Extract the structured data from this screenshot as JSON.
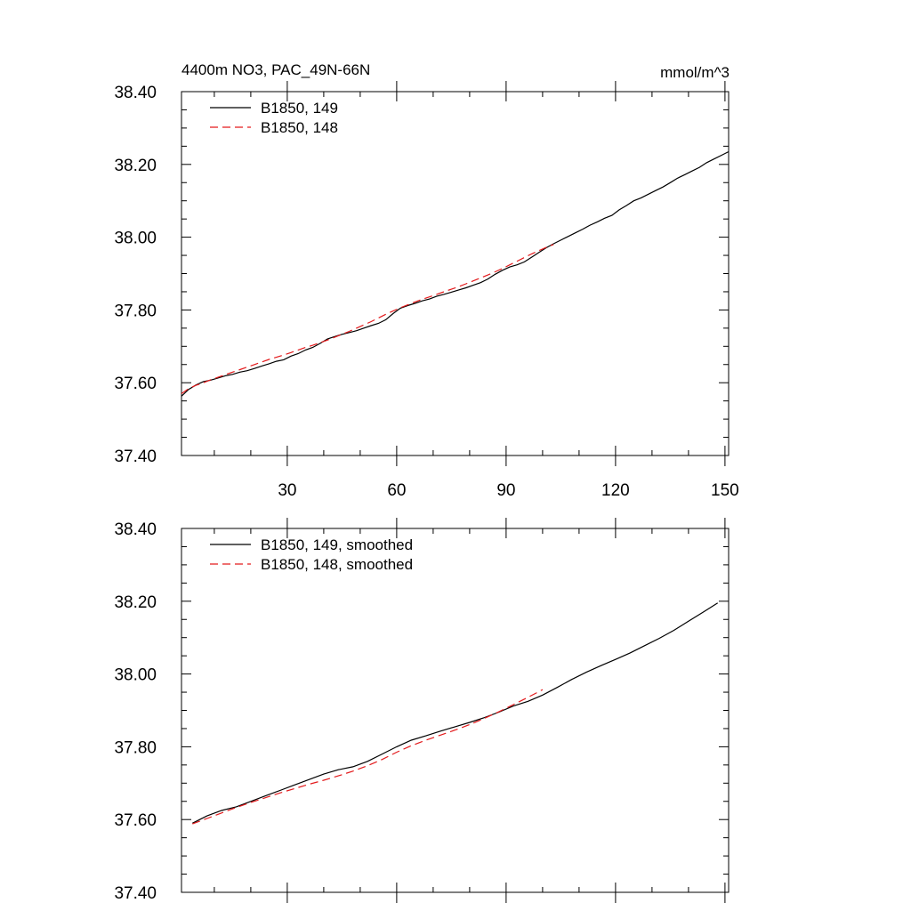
{
  "chart_data": [
    {
      "type": "line",
      "title": "4400m NO3, PAC_49N-66N",
      "subtitle": "mmol/m^3",
      "xlabel": "",
      "ylabel": "",
      "xlim": [
        1,
        151
      ],
      "ylim": [
        37.4,
        38.4
      ],
      "x_ticks": [
        30,
        60,
        90,
        120,
        150
      ],
      "x_tick_labels": [
        "30",
        "60",
        "90",
        "120",
        "150"
      ],
      "y_ticks": [
        37.4,
        37.6,
        37.8,
        38.0,
        38.2,
        38.4
      ],
      "y_tick_labels": [
        "37.40",
        "37.60",
        "37.80",
        "38.00",
        "38.20",
        "38.40"
      ],
      "grid": false,
      "legend_position": "top-left",
      "series": [
        {
          "name": "B1850, 149",
          "color": "#000000",
          "dash": "solid",
          "x": [
            1,
            3,
            5,
            7,
            9,
            11,
            13,
            15,
            17,
            19,
            21,
            23,
            25,
            27,
            29,
            31,
            33,
            35,
            37,
            39,
            41,
            43,
            45,
            47,
            49,
            51,
            53,
            55,
            57,
            59,
            61,
            63,
            65,
            67,
            69,
            71,
            73,
            75,
            77,
            79,
            81,
            83,
            85,
            87,
            89,
            91,
            93,
            95,
            97,
            99,
            101,
            103,
            105,
            107,
            109,
            111,
            113,
            115,
            117,
            119,
            121,
            123,
            125,
            127,
            129,
            131,
            133,
            135,
            137,
            139,
            141,
            143,
            145,
            147,
            149,
            151
          ],
          "values": [
            37.563,
            37.582,
            37.594,
            37.603,
            37.607,
            37.613,
            37.619,
            37.623,
            37.629,
            37.633,
            37.639,
            37.646,
            37.652,
            37.659,
            37.663,
            37.673,
            37.68,
            37.69,
            37.697,
            37.708,
            37.72,
            37.727,
            37.733,
            37.738,
            37.743,
            37.75,
            37.757,
            37.763,
            37.773,
            37.79,
            37.805,
            37.812,
            37.818,
            37.825,
            37.83,
            37.838,
            37.843,
            37.849,
            37.855,
            37.861,
            37.868,
            37.875,
            37.885,
            37.898,
            37.909,
            37.918,
            37.924,
            37.932,
            37.945,
            37.958,
            37.971,
            37.982,
            37.992,
            38.002,
            38.012,
            38.022,
            38.033,
            38.042,
            38.052,
            38.06,
            38.075,
            38.087,
            38.1,
            38.108,
            38.118,
            38.128,
            38.138,
            38.15,
            38.162,
            38.172,
            38.182,
            38.192,
            38.205,
            38.215,
            38.225,
            38.235
          ]
        },
        {
          "name": "B1850, 148",
          "color": "#e31a1c",
          "dash": "dashed",
          "x": [
            1,
            3,
            5,
            7,
            9,
            11,
            13,
            15,
            17,
            19,
            21,
            23,
            25,
            27,
            29,
            31,
            33,
            35,
            37,
            39,
            41,
            43,
            45,
            47,
            49,
            51,
            53,
            55,
            57,
            59,
            61,
            63,
            65,
            67,
            69,
            71,
            73,
            75,
            77,
            79,
            81,
            83,
            85,
            87,
            89,
            91,
            93,
            95,
            97,
            99,
            101,
            103
          ],
          "values": [
            37.57,
            37.584,
            37.593,
            37.6,
            37.608,
            37.615,
            37.622,
            37.629,
            37.636,
            37.643,
            37.65,
            37.657,
            37.664,
            37.67,
            37.676,
            37.683,
            37.69,
            37.697,
            37.703,
            37.71,
            37.717,
            37.725,
            37.733,
            37.741,
            37.75,
            37.759,
            37.768,
            37.778,
            37.788,
            37.797,
            37.806,
            37.814,
            37.822,
            37.829,
            37.836,
            37.843,
            37.85,
            37.857,
            37.864,
            37.872,
            37.88,
            37.888,
            37.896,
            37.905,
            37.914,
            37.924,
            37.934,
            37.944,
            37.954,
            37.963,
            37.972,
            37.98
          ]
        }
      ]
    },
    {
      "type": "line",
      "title": "",
      "xlabel": "",
      "ylabel": "",
      "xlim": [
        1,
        151
      ],
      "ylim": [
        37.4,
        38.4
      ],
      "x_ticks": [
        30,
        60,
        90,
        120,
        150
      ],
      "x_tick_labels": [],
      "y_ticks": [
        37.4,
        37.6,
        37.8,
        38.0,
        38.2,
        38.4
      ],
      "y_tick_labels": [
        "37.40",
        "37.60",
        "37.80",
        "38.00",
        "38.20",
        "38.40"
      ],
      "grid": false,
      "legend_position": "top-left",
      "series": [
        {
          "name": "B1850, 149, smoothed",
          "color": "#000000",
          "dash": "solid",
          "x": [
            4,
            8,
            12,
            16,
            20,
            24,
            28,
            32,
            36,
            40,
            44,
            48,
            52,
            56,
            60,
            64,
            68,
            72,
            76,
            80,
            84,
            88,
            92,
            96,
            100,
            104,
            108,
            112,
            116,
            120,
            124,
            128,
            132,
            136,
            140,
            144,
            148
          ],
          "values": [
            37.59,
            37.61,
            37.625,
            37.635,
            37.65,
            37.665,
            37.68,
            37.695,
            37.71,
            37.725,
            37.737,
            37.745,
            37.76,
            37.78,
            37.8,
            37.818,
            37.83,
            37.843,
            37.855,
            37.867,
            37.88,
            37.895,
            37.912,
            37.925,
            37.942,
            37.963,
            37.985,
            38.005,
            38.023,
            38.04,
            38.058,
            38.078,
            38.098,
            38.12,
            38.145,
            38.17,
            38.195
          ]
        },
        {
          "name": "B1850, 148, smoothed",
          "color": "#e31a1c",
          "dash": "dashed",
          "x": [
            4,
            8,
            12,
            16,
            20,
            24,
            28,
            32,
            36,
            40,
            44,
            48,
            52,
            56,
            60,
            64,
            68,
            72,
            76,
            80,
            84,
            88,
            92,
            96,
            100
          ],
          "values": [
            37.588,
            37.603,
            37.618,
            37.633,
            37.647,
            37.66,
            37.673,
            37.685,
            37.697,
            37.708,
            37.72,
            37.733,
            37.748,
            37.765,
            37.785,
            37.803,
            37.818,
            37.832,
            37.846,
            37.861,
            37.878,
            37.896,
            37.916,
            37.936,
            37.957
          ]
        }
      ]
    }
  ]
}
